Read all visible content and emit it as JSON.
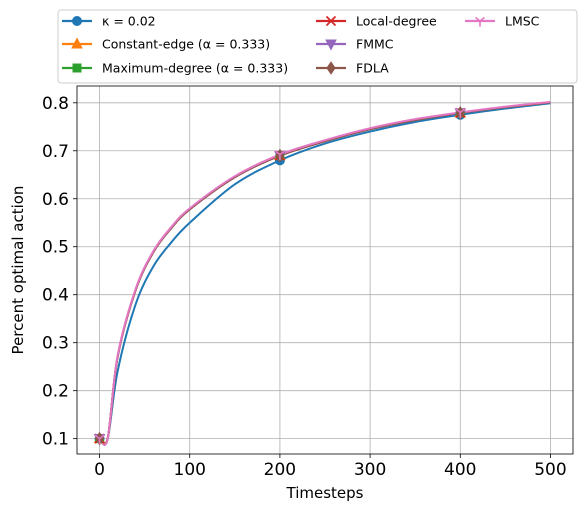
{
  "chart_data": {
    "type": "line",
    "xlabel": "Timesteps",
    "ylabel": "Percent optimal action",
    "xlim": [
      -25,
      525
    ],
    "ylim": [
      0.068,
      0.835
    ],
    "xticks": [
      0,
      100,
      200,
      300,
      400,
      500
    ],
    "yticks": [
      0.1,
      0.2,
      0.3,
      0.4,
      0.5,
      0.6,
      0.7,
      0.8
    ],
    "grid": true,
    "legend_placement": "top, above plot, 3 columns",
    "series": [
      {
        "name": "κ = 0.02",
        "color": "#1f77b4",
        "marker": "circle",
        "x": [
          0,
          9,
          20,
          40,
          60,
          80,
          100,
          150,
          200,
          250,
          300,
          350,
          400,
          450,
          500
        ],
        "y": [
          0.1,
          0.1,
          0.24,
          0.38,
          0.46,
          0.51,
          0.55,
          0.63,
          0.68,
          0.715,
          0.74,
          0.76,
          0.775,
          0.788,
          0.799
        ]
      },
      {
        "name": "Constant-edge (α = 0.333)",
        "color": "#ff7f0e",
        "marker": "triangle-up",
        "x": [
          0,
          9,
          20,
          40,
          60,
          80,
          100,
          150,
          200,
          250,
          300,
          350,
          400,
          450,
          500
        ],
        "y": [
          0.1,
          0.1,
          0.27,
          0.41,
          0.49,
          0.54,
          0.578,
          0.645,
          0.69,
          0.72,
          0.745,
          0.764,
          0.779,
          0.791,
          0.801
        ]
      },
      {
        "name": "Maximum-degree (α = 0.333)",
        "color": "#2ca02c",
        "marker": "square",
        "x": [
          0,
          9,
          20,
          40,
          60,
          80,
          100,
          150,
          200,
          250,
          300,
          350,
          400,
          450,
          500
        ],
        "y": [
          0.1,
          0.1,
          0.27,
          0.41,
          0.49,
          0.54,
          0.578,
          0.645,
          0.69,
          0.72,
          0.745,
          0.764,
          0.779,
          0.791,
          0.801
        ]
      },
      {
        "name": "Local-degree",
        "color": "#d62728",
        "marker": "x",
        "x": [
          0,
          9,
          20,
          40,
          60,
          80,
          100,
          150,
          200,
          250,
          300,
          350,
          400,
          450,
          500
        ],
        "y": [
          0.1,
          0.1,
          0.27,
          0.41,
          0.49,
          0.54,
          0.578,
          0.645,
          0.69,
          0.72,
          0.745,
          0.764,
          0.779,
          0.791,
          0.801
        ]
      },
      {
        "name": "FMMC",
        "color": "#9467bd",
        "marker": "triangle-down",
        "x": [
          0,
          9,
          20,
          40,
          60,
          80,
          100,
          150,
          200,
          250,
          300,
          350,
          400,
          450,
          500
        ],
        "y": [
          0.1,
          0.1,
          0.27,
          0.41,
          0.49,
          0.54,
          0.578,
          0.645,
          0.69,
          0.72,
          0.745,
          0.764,
          0.779,
          0.791,
          0.801
        ]
      },
      {
        "name": "FDLA",
        "color": "#8c564b",
        "marker": "diamond",
        "x": [
          0,
          9,
          20,
          40,
          60,
          80,
          100,
          150,
          200,
          250,
          300,
          350,
          400,
          450,
          500
        ],
        "y": [
          0.1,
          0.1,
          0.27,
          0.41,
          0.49,
          0.54,
          0.578,
          0.645,
          0.69,
          0.72,
          0.745,
          0.764,
          0.779,
          0.791,
          0.801
        ]
      },
      {
        "name": "LMSC",
        "color": "#e377c2",
        "marker": "tri-down",
        "x": [
          0,
          9,
          20,
          40,
          60,
          80,
          100,
          150,
          200,
          250,
          300,
          350,
          400,
          450,
          500
        ],
        "y": [
          0.1,
          0.1,
          0.272,
          0.412,
          0.492,
          0.542,
          0.58,
          0.647,
          0.692,
          0.722,
          0.747,
          0.766,
          0.78,
          0.792,
          0.802
        ]
      }
    ],
    "marker_x": [
      0,
      200,
      400
    ]
  }
}
